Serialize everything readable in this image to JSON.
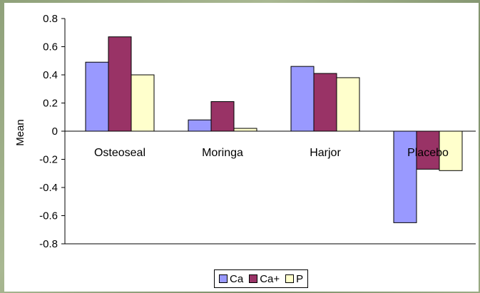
{
  "chart_data": {
    "type": "bar",
    "categories": [
      "Osteoseal",
      "Moringa",
      "Harjor",
      "Placebo"
    ],
    "series": [
      {
        "name": "Ca",
        "color": "#9999ff",
        "values": [
          0.49,
          0.08,
          0.46,
          -0.65
        ]
      },
      {
        "name": "Ca+",
        "color": "#993366",
        "values": [
          0.67,
          0.21,
          0.41,
          -0.27
        ]
      },
      {
        "name": "P",
        "color": "#ffffcc",
        "values": [
          0.4,
          0.02,
          0.38,
          -0.28
        ]
      }
    ],
    "ylabel": "Mean",
    "ylim": [
      -0.8,
      0.8
    ],
    "yticks": [
      "0.8",
      "0.6",
      "0.4",
      "0.2",
      "0",
      "-0.2",
      "-0.4",
      "-0.6",
      "-0.8"
    ],
    "grid": false,
    "legend_position": "bottom"
  }
}
